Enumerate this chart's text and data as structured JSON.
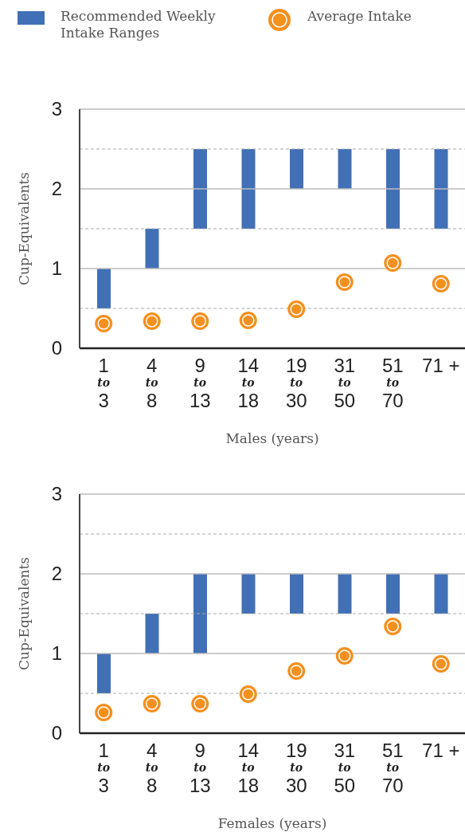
{
  "chart_data": [
    {
      "type": "bar",
      "xlabel": "Males (years)",
      "ylabel": "Cup-Equivalents",
      "legend": "top",
      "grid": "y",
      "categories": [
        "1\nto\n3",
        "4\nto\n8",
        "9\nto\n13",
        "14\nto\n18",
        "19\nto\n30",
        "31\nto\n50",
        "51\nto\n70",
        "71 +"
      ],
      "ylim": [
        0,
        3
      ],
      "yticks": [
        0,
        {
          "value": 0.5,
          "label": null
        },
        1,
        {
          "value": 1.5,
          "label": null
        },
        2,
        {
          "value": 2.5,
          "label": null
        },
        3
      ],
      "series": [
        {
          "name": "Recommended Weekly Intake Ranges",
          "color": "#4170b6",
          "base": [
            0.5,
            1,
            1.5,
            1.5,
            2,
            2,
            1.5,
            1.5
          ],
          "values": [
            0.5,
            0.5,
            1,
            1,
            0.5,
            0.5,
            1,
            1
          ]
        },
        {
          "name": "Average Intake",
          "type": "scatter",
          "color": "#f4901e",
          "marker": "circle",
          "x": [
            "1\nto\n3",
            "4\nto\n8",
            "9\nto\n13",
            "14\nto\n18",
            "19\nto\n30",
            "31\nto\n50",
            "51\nto\n70",
            "71 +"
          ],
          "values": [
            0.31,
            0.34,
            0.34,
            0.35,
            0.49,
            0.83,
            1.07,
            0.81
          ]
        }
      ]
    },
    {
      "type": "bar",
      "xlabel": "Females (years)",
      "ylabel": "Cup-Equivalents",
      "grid": "y",
      "categories": [
        "1\nto\n3",
        "4\nto\n8",
        "9\nto\n13",
        "14\nto\n18",
        "19\nto\n30",
        "31\nto\n50",
        "51\nto\n70",
        "71 +"
      ],
      "ylim": [
        0,
        3
      ],
      "yticks": [
        0,
        {
          "value": 0.5,
          "label": null
        },
        1,
        {
          "value": 1.5,
          "label": null
        },
        2,
        {
          "value": 2.5,
          "label": null
        },
        3
      ],
      "series": [
        {
          "color": "#4170b6",
          "base": [
            0.5,
            1,
            1,
            1.5,
            1.5,
            1.5,
            1.5,
            1.5
          ],
          "values": [
            0.5,
            0.5,
            1,
            0.5,
            0.5,
            0.5,
            0.5,
            0.5
          ]
        },
        {
          "type": "scatter",
          "color": "#f4901e",
          "marker": "circle",
          "x": [
            "1\nto\n3",
            "4\nto\n8",
            "9\nto\n13",
            "14\nto\n18",
            "19\nto\n30",
            "31\nto\n50",
            "51\nto\n70",
            "71 +"
          ],
          "values": [
            0.26,
            0.37,
            0.37,
            0.49,
            0.78,
            0.97,
            1.34,
            0.87
          ]
        }
      ]
    }
  ]
}
